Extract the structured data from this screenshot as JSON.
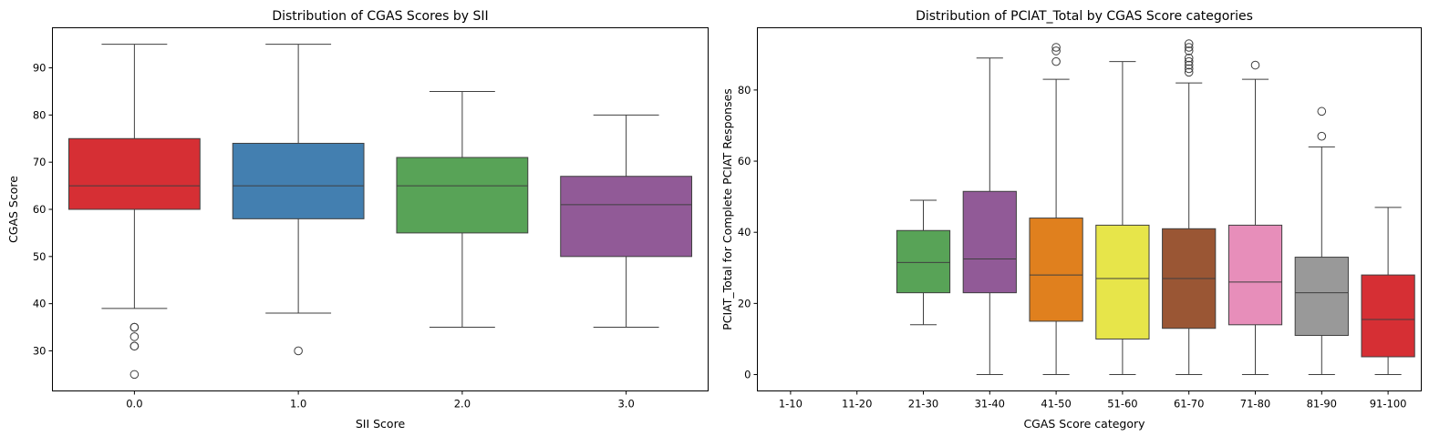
{
  "chart_data": [
    {
      "type": "box",
      "title": "Distribution of CGAS Scores by SII",
      "xlabel": "SII Score",
      "ylabel": "CGAS Score",
      "categories": [
        "0.0",
        "1.0",
        "2.0",
        "3.0"
      ],
      "yticks": [
        "30",
        "40",
        "50",
        "60",
        "70",
        "80",
        "90"
      ],
      "ylim": [
        21.5,
        98.5
      ],
      "grid": false,
      "boxes": [
        {
          "category": "0.0",
          "color": "#d62f34",
          "whislo": 39,
          "q1": 60,
          "median": 65,
          "q3": 75,
          "whishi": 95,
          "fliers": [
            35,
            35,
            33,
            31,
            31,
            25
          ]
        },
        {
          "category": "1.0",
          "color": "#437fb0",
          "whislo": 38,
          "q1": 58,
          "median": 65,
          "q3": 74,
          "whishi": 95,
          "fliers": [
            30
          ]
        },
        {
          "category": "2.0",
          "color": "#58a357",
          "whislo": 35,
          "q1": 55,
          "median": 65,
          "q3": 71,
          "whishi": 85,
          "fliers": []
        },
        {
          "category": "3.0",
          "color": "#915a97",
          "whislo": 35,
          "q1": 50,
          "median": 61,
          "q3": 67,
          "whishi": 80,
          "fliers": []
        }
      ]
    },
    {
      "type": "box",
      "title": "Distribution of PCIAT_Total by CGAS Score categories",
      "xlabel": "CGAS Score category",
      "ylabel": "PCIAT_Total for Complete PCIAT Responses",
      "categories": [
        "1-10",
        "11-20",
        "21-30",
        "31-40",
        "41-50",
        "51-60",
        "61-70",
        "71-80",
        "81-90",
        "91-100"
      ],
      "yticks": [
        "0",
        "20",
        "40",
        "60",
        "80"
      ],
      "ylim": [
        -4.6,
        97.5
      ],
      "grid": false,
      "boxes": [
        {
          "category": "1-10",
          "color": null
        },
        {
          "category": "11-20",
          "color": null
        },
        {
          "category": "21-30",
          "color": "#58a357",
          "whislo": 14,
          "q1": 23,
          "median": 31.5,
          "q3": 40.5,
          "whishi": 49,
          "fliers": []
        },
        {
          "category": "31-40",
          "color": "#915a97",
          "whislo": 0,
          "q1": 23,
          "median": 32.5,
          "q3": 51.5,
          "whishi": 89,
          "fliers": []
        },
        {
          "category": "41-50",
          "color": "#e0801e",
          "whislo": 0,
          "q1": 15,
          "median": 28,
          "q3": 44,
          "whishi": 83,
          "fliers": [
            92,
            91,
            88
          ]
        },
        {
          "category": "51-60",
          "color": "#e7e54a",
          "whislo": 0,
          "q1": 10,
          "median": 27,
          "q3": 42,
          "whishi": 88,
          "fliers": []
        },
        {
          "category": "61-70",
          "color": "#9a5634",
          "whislo": 0,
          "q1": 13,
          "median": 27,
          "q3": 41,
          "whishi": 82,
          "fliers": [
            93,
            92,
            91,
            89,
            88,
            87,
            86,
            85
          ]
        },
        {
          "category": "71-80",
          "color": "#e78eba",
          "whislo": 0,
          "q1": 14,
          "median": 26,
          "q3": 42,
          "whishi": 83,
          "fliers": [
            87
          ]
        },
        {
          "category": "81-90",
          "color": "#999999",
          "whislo": 0,
          "q1": 11,
          "median": 23,
          "q3": 33,
          "whishi": 64,
          "fliers": [
            74,
            67
          ]
        },
        {
          "category": "91-100",
          "color": "#d62f34",
          "whislo": 0,
          "q1": 5,
          "median": 15.5,
          "q3": 28,
          "whishi": 47,
          "fliers": []
        }
      ]
    }
  ]
}
